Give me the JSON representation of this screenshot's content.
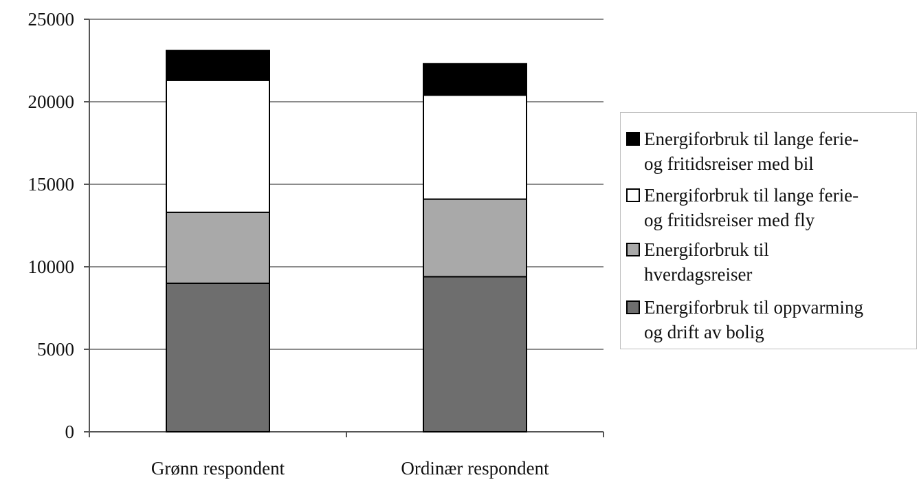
{
  "chart_data": {
    "type": "bar",
    "stacked": true,
    "categories": [
      "Grønn respondent",
      "Ordinær respondent"
    ],
    "series": [
      {
        "name": "Energiforbruk til oppvarming og drift av bolig",
        "values": [
          9000,
          9400
        ],
        "color": "#6e6e6e"
      },
      {
        "name": "Energiforbruk til hverdagsreiser",
        "values": [
          4300,
          4700
        ],
        "color": "#a9a9a9"
      },
      {
        "name": "Energiforbruk til lange ferie- og fritidsreiser  med fly",
        "values": [
          8000,
          6300
        ],
        "color": "#ffffff"
      },
      {
        "name": "Energiforbruk til lange ferie- og fritidsreiser  med bil",
        "values": [
          1800,
          1900
        ],
        "color": "#000000"
      }
    ],
    "yticks": [
      "0",
      "5000",
      "10000",
      "15000",
      "20000",
      "25000"
    ],
    "ylim": [
      0,
      25000
    ],
    "grid": true,
    "legend_position": "right",
    "legend": [
      {
        "label": "Energiforbruk til lange ferie-\nog fritidsreiser  med bil",
        "color": "#000000"
      },
      {
        "label": "Energiforbruk til lange ferie-\nog fritidsreiser  med fly",
        "color": "#ffffff"
      },
      {
        "label": "Energiforbruk til\nhverdagsreiser",
        "color": "#a9a9a9"
      },
      {
        "label": "Energiforbruk til oppvarming\nog drift av bolig",
        "color": "#6e6e6e"
      }
    ]
  }
}
